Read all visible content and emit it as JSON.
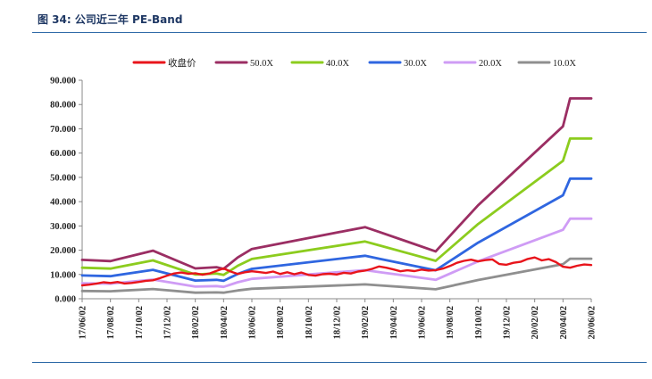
{
  "figure": {
    "label": "图 34:",
    "title": "公司近三年 PE-Band"
  },
  "colors": {
    "price": "#e8141b",
    "pe50": "#9b2e63",
    "pe40": "#8ccc1e",
    "pe30": "#2f66e0",
    "pe20": "#cf9cf5",
    "pe10": "#8f8f8f",
    "axis": "#888888",
    "rule": "#2e6aa7"
  },
  "chart_data": {
    "type": "line",
    "title": "",
    "xlabel": "",
    "ylabel": "",
    "ylim": [
      0,
      90
    ],
    "yticks": [
      0,
      10,
      20,
      30,
      40,
      50,
      60,
      70,
      80,
      90
    ],
    "ytick_labels": [
      "0.000",
      "10.000",
      "20.000",
      "30.000",
      "40.000",
      "50.000",
      "60.000",
      "70.000",
      "80.000",
      "90.000"
    ],
    "x_range_months": [
      0,
      36
    ],
    "xticks": [
      0,
      2,
      4,
      6,
      8,
      10,
      12,
      14,
      16,
      18,
      20,
      22,
      24,
      26,
      28,
      30,
      32,
      34,
      36
    ],
    "xtick_labels": [
      "17/06/02",
      "17/08/02",
      "17/10/02",
      "17/12/02",
      "18/02/02",
      "18/04/02",
      "18/06/02",
      "18/08/02",
      "18/10/02",
      "18/12/02",
      "19/02/02",
      "19/04/02",
      "19/06/02",
      "19/08/02",
      "19/10/02",
      "19/12/02",
      "20/02/02",
      "20/04/02",
      "20/06/02"
    ],
    "legend_position": "top",
    "series": [
      {
        "name": "收盘价",
        "color_key": "price",
        "x": [
          0,
          0.5,
          1,
          1.5,
          2,
          2.5,
          3,
          3.5,
          4,
          4.5,
          5,
          5.5,
          6,
          6.5,
          7,
          7.5,
          8,
          8.5,
          9,
          9.5,
          10,
          10.5,
          11,
          11.5,
          12,
          12.5,
          13,
          13.5,
          14,
          14.5,
          15,
          15.5,
          16,
          16.5,
          17,
          17.5,
          18,
          18.5,
          19,
          19.5,
          20,
          20.5,
          21,
          21.5,
          22,
          22.5,
          23,
          23.5,
          24,
          24.5,
          25,
          25.5,
          26,
          26.5,
          27,
          27.5,
          28,
          28.5,
          29,
          29.5,
          30,
          30.5,
          31,
          31.5,
          32,
          32.5,
          33,
          33.5,
          34,
          34.5,
          35,
          35.5,
          36
        ],
        "y": [
          5.5,
          5.8,
          6.2,
          6.8,
          6.5,
          6.9,
          6.3,
          6.5,
          6.9,
          7.4,
          7.6,
          8.5,
          9.5,
          10.4,
          10.8,
          10.3,
          10.5,
          9.9,
          10.4,
          11.5,
          12.5,
          11.2,
          10.2,
          10.9,
          11.3,
          11.0,
          10.6,
          11.2,
          10.2,
          10.9,
          10.1,
          10.8,
          9.8,
          9.5,
          10.1,
          10.3,
          10.0,
          10.7,
          10.4,
          11.2,
          11.6,
          12.3,
          13.3,
          12.8,
          12.1,
          11.3,
          11.7,
          11.4,
          12.0,
          11.6,
          11.8,
          12.4,
          13.5,
          14.8,
          15.6,
          16.1,
          15.4,
          15.9,
          16.2,
          14.3,
          14.0,
          14.8,
          15.2,
          16.4,
          17.0,
          15.8,
          16.3,
          15.1,
          13.2,
          12.8,
          13.6,
          14.1,
          13.9
        ]
      },
      {
        "name": "50.0X",
        "color_key": "pe50",
        "x": [
          0,
          2,
          5,
          8,
          9.5,
          10,
          11,
          12,
          20,
          21,
          23,
          25,
          28,
          34,
          34.5,
          36
        ],
        "y": [
          16,
          15.5,
          19.8,
          12.5,
          13,
          12.3,
          17,
          20.5,
          29.5,
          27.5,
          23.5,
          19.5,
          38.5,
          71,
          82.5,
          82.5
        ]
      },
      {
        "name": "40.0X",
        "color_key": "pe40",
        "x": [
          0,
          2,
          5,
          8,
          9.5,
          10,
          11,
          12,
          20,
          21,
          23,
          25,
          28,
          34,
          34.5,
          36
        ],
        "y": [
          12.8,
          12.4,
          15.8,
          10,
          10.4,
          9.8,
          13.6,
          16.4,
          23.6,
          22,
          18.8,
          15.6,
          30.8,
          56.8,
          66,
          66
        ]
      },
      {
        "name": "30.0X",
        "color_key": "pe30",
        "x": [
          0,
          2,
          5,
          8,
          9.5,
          10,
          11,
          12,
          20,
          21,
          23,
          25,
          28,
          34,
          34.5,
          36
        ],
        "y": [
          9.6,
          9.3,
          11.9,
          7.5,
          7.8,
          7.4,
          10.2,
          12.3,
          17.7,
          16.5,
          14.1,
          11.7,
          23.1,
          42.6,
          49.5,
          49.5
        ]
      },
      {
        "name": "20.0X",
        "color_key": "pe20",
        "x": [
          0,
          2,
          5,
          8,
          9.5,
          10,
          11,
          12,
          20,
          21,
          23,
          25,
          28,
          34,
          34.5,
          36
        ],
        "y": [
          6.4,
          6.2,
          7.9,
          5,
          5.2,
          4.9,
          6.8,
          8.2,
          11.8,
          11,
          9.4,
          7.8,
          15.4,
          28.4,
          33,
          33
        ]
      },
      {
        "name": "10.0X",
        "color_key": "pe10",
        "x": [
          0,
          2,
          5,
          8,
          9.5,
          10,
          11,
          12,
          20,
          21,
          23,
          25,
          28,
          34,
          34.5,
          36
        ],
        "y": [
          3.2,
          3.1,
          4,
          2.5,
          2.6,
          2.5,
          3.4,
          4.1,
          5.9,
          5.5,
          4.7,
          3.9,
          7.7,
          14.2,
          16.5,
          16.5
        ]
      }
    ]
  }
}
